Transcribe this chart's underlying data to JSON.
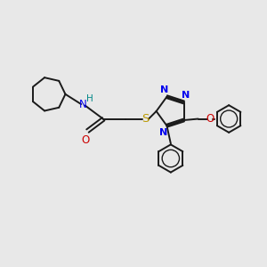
{
  "bg_color": "#e8e8e8",
  "bond_color": "#1a1a1a",
  "N_color": "#0000ee",
  "O_color": "#cc0000",
  "S_color": "#bb9900",
  "H_color": "#008888",
  "font_size": 8.5,
  "figsize": [
    3.0,
    3.0
  ],
  "dpi": 100,
  "xlim": [
    0,
    10
  ],
  "ylim": [
    0,
    10
  ]
}
